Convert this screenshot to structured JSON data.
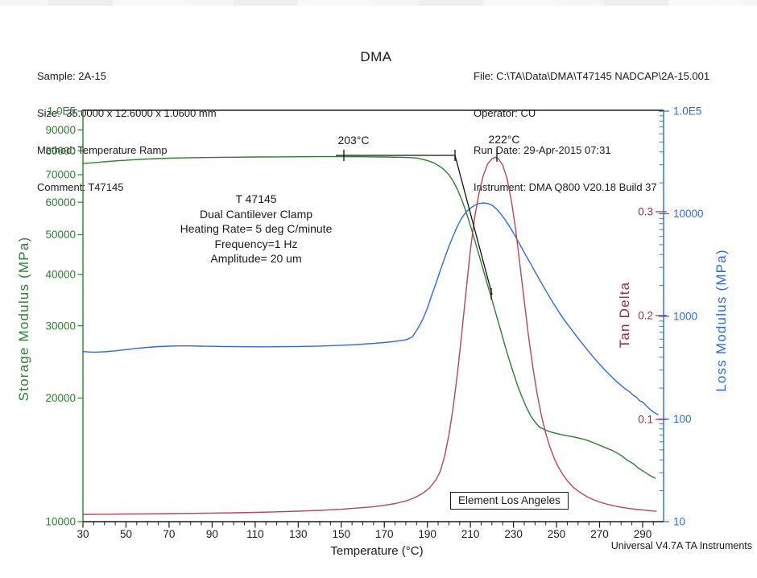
{
  "header": {
    "left": [
      "Sample: 2A-15",
      "Size:  35.0000 x 12.6000 x 1.0600 mm",
      "Method: Temperature Ramp",
      "Comment: T47145"
    ],
    "title": "DMA",
    "right": [
      "File: C:\\TA\\Data\\DMA\\T47145 NADCAP\\2A-15.001",
      "Operator: CU",
      "Run Date: 29-Apr-2015 07:31",
      "Instrument: DMA Q800 V20.18 Build 37"
    ]
  },
  "footer": {
    "credit": "Universal V4.7A TA Instruments"
  },
  "annotations": {
    "onset_label": "203°C",
    "peak_label": "222°C",
    "info_block": {
      "line1": "T 47145",
      "line2": "Dual Cantilever Clamp",
      "line3": "Heating Rate= 5 deg C/minute",
      "line4": "Frequency=1 Hz",
      "line5": "Amplitude= 20 um"
    },
    "element_label": "Element Los Angeles"
  },
  "chart_data": {
    "type": "line",
    "title": "DMA",
    "xlabel": "Temperature (°C)",
    "x_axis": {
      "min": 30,
      "max": 299.7,
      "minor_step": 5,
      "major_ticks": [
        30,
        50,
        70,
        90,
        110,
        130,
        150,
        170,
        190,
        210,
        230,
        250,
        270,
        290
      ]
    },
    "y_axes": {
      "storage": {
        "label": "Storage Modulus (MPa)",
        "side": "left",
        "scale": "log",
        "min": 10000,
        "max": 100000,
        "color": "#2e7d32",
        "ticks": [
          10000,
          20000,
          30000,
          40000,
          50000,
          60000,
          70000,
          80000,
          90000,
          100000
        ],
        "tick_labels": [
          "10000",
          "20000",
          "30000",
          "40000",
          "50000",
          "60000",
          "70000",
          "80000",
          "90000",
          "1.0E5"
        ]
      },
      "loss": {
        "label": "Loss Modulus (MPa)",
        "side": "right",
        "scale": "log",
        "min": 10,
        "max": 100000,
        "color": "#2f6ad9",
        "ticks": [
          10,
          100,
          1000,
          10000,
          100000
        ],
        "tick_labels": [
          "10",
          "100",
          "1000",
          "10000",
          "1.0E5"
        ]
      },
      "tan_delta": {
        "label": "Tan Delta",
        "side": "right",
        "scale": "linear",
        "color": "#9a2c3e",
        "ticks": [
          0.1,
          0.2,
          0.3
        ],
        "tick_labels": [
          "0.1",
          "0.2",
          "0.3"
        ]
      }
    },
    "annotations": {
      "onset": {
        "label": "203°C",
        "temperature_c": 203
      },
      "peak": {
        "label": "222°C",
        "temperature_c": 222
      }
    },
    "series": [
      {
        "name": "storage_modulus",
        "axis": "storage",
        "color": "#2e7d32",
        "units": "MPa",
        "points": [
          [
            30,
            74500
          ],
          [
            34,
            74800
          ],
          [
            38,
            75100
          ],
          [
            42,
            75400
          ],
          [
            46,
            75700
          ],
          [
            50,
            75900
          ],
          [
            55,
            76200
          ],
          [
            60,
            76400
          ],
          [
            65,
            76600
          ],
          [
            70,
            76800
          ],
          [
            75,
            76900
          ],
          [
            80,
            77000
          ],
          [
            90,
            77100
          ],
          [
            100,
            77200
          ],
          [
            110,
            77300
          ],
          [
            120,
            77350
          ],
          [
            130,
            77400
          ],
          [
            140,
            77450
          ],
          [
            150,
            77450
          ],
          [
            160,
            77400
          ],
          [
            170,
            77300
          ],
          [
            180,
            77100
          ],
          [
            185,
            76900
          ],
          [
            190,
            75800
          ],
          [
            193,
            74800
          ],
          [
            196,
            73200
          ],
          [
            198,
            71800
          ],
          [
            200,
            70000
          ],
          [
            202,
            67500
          ],
          [
            204,
            64400
          ],
          [
            206,
            60800
          ],
          [
            208,
            56800
          ],
          [
            210,
            52600
          ],
          [
            212,
            48500
          ],
          [
            214,
            44600
          ],
          [
            216,
            41000
          ],
          [
            218,
            37700
          ],
          [
            220,
            34700
          ],
          [
            222,
            31900
          ],
          [
            224,
            29300
          ],
          [
            226,
            26900
          ],
          [
            228,
            24800
          ],
          [
            230,
            23000
          ],
          [
            232,
            21400
          ],
          [
            234,
            20100
          ],
          [
            236,
            19000
          ],
          [
            238,
            18100
          ],
          [
            240,
            17500
          ],
          [
            242,
            17000
          ],
          [
            245,
            16700
          ],
          [
            248,
            16500
          ],
          [
            252,
            16300
          ],
          [
            256,
            16150
          ],
          [
            260,
            16000
          ],
          [
            264,
            15800
          ],
          [
            268,
            15500
          ],
          [
            272,
            15200
          ],
          [
            276,
            14900
          ],
          [
            280,
            14500
          ],
          [
            283,
            14100
          ],
          [
            286,
            13800
          ],
          [
            288,
            13500
          ],
          [
            290,
            13300
          ],
          [
            292,
            13100
          ],
          [
            294,
            12900
          ],
          [
            296,
            12750
          ]
        ]
      },
      {
        "name": "loss_modulus",
        "axis": "loss",
        "color": "#2f6ad9",
        "units": "MPa",
        "points": [
          [
            30,
            455
          ],
          [
            33,
            449
          ],
          [
            36,
            448
          ],
          [
            40,
            452
          ],
          [
            45,
            462
          ],
          [
            50,
            474
          ],
          [
            55,
            488
          ],
          [
            60,
            499
          ],
          [
            65,
            508
          ],
          [
            70,
            513
          ],
          [
            75,
            515
          ],
          [
            80,
            515
          ],
          [
            85,
            513
          ],
          [
            90,
            511
          ],
          [
            95,
            509
          ],
          [
            100,
            507
          ],
          [
            105,
            506
          ],
          [
            110,
            505
          ],
          [
            115,
            505
          ],
          [
            120,
            506
          ],
          [
            125,
            507
          ],
          [
            130,
            509
          ],
          [
            135,
            511
          ],
          [
            140,
            514
          ],
          [
            145,
            518
          ],
          [
            150,
            523
          ],
          [
            155,
            529
          ],
          [
            160,
            536
          ],
          [
            165,
            545
          ],
          [
            170,
            556
          ],
          [
            175,
            570
          ],
          [
            180,
            590
          ],
          [
            183,
            630
          ],
          [
            186,
            790
          ],
          [
            188,
            950
          ],
          [
            190,
            1200
          ],
          [
            192,
            1600
          ],
          [
            194,
            2100
          ],
          [
            196,
            2800
          ],
          [
            198,
            3700
          ],
          [
            200,
            4800
          ],
          [
            202,
            6100
          ],
          [
            204,
            7600
          ],
          [
            206,
            9100
          ],
          [
            208,
            10400
          ],
          [
            210,
            11300
          ],
          [
            212,
            12100
          ],
          [
            214,
            12550
          ],
          [
            216,
            12750
          ],
          [
            218,
            12600
          ],
          [
            220,
            12100
          ],
          [
            222,
            11200
          ],
          [
            224,
            10000
          ],
          [
            226,
            8800
          ],
          [
            228,
            7600
          ],
          [
            230,
            6500
          ],
          [
            232,
            5450
          ],
          [
            234,
            4600
          ],
          [
            236,
            3850
          ],
          [
            238,
            3250
          ],
          [
            240,
            2730
          ],
          [
            242,
            2300
          ],
          [
            244,
            1940
          ],
          [
            246,
            1650
          ],
          [
            248,
            1400
          ],
          [
            250,
            1200
          ],
          [
            252,
            1030
          ],
          [
            255,
            845
          ],
          [
            258,
            695
          ],
          [
            261,
            575
          ],
          [
            264,
            480
          ],
          [
            267,
            403
          ],
          [
            270,
            342
          ],
          [
            273,
            293
          ],
          [
            276,
            253
          ],
          [
            279,
            221
          ],
          [
            282,
            196
          ],
          [
            284,
            184
          ],
          [
            285.5,
            171
          ],
          [
            287,
            164
          ],
          [
            288.5,
            151
          ],
          [
            290,
            146
          ],
          [
            292,
            133
          ],
          [
            293.5,
            124
          ],
          [
            295,
            117
          ],
          [
            296.2,
            113
          ],
          [
            297.3,
            110
          ]
        ]
      },
      {
        "name": "tan_delta",
        "axis": "tan_delta",
        "color": "#b04a58",
        "units": "",
        "points": [
          [
            30,
            0.0085
          ],
          [
            40,
            0.0087
          ],
          [
            50,
            0.0089
          ],
          [
            60,
            0.0091
          ],
          [
            70,
            0.0093
          ],
          [
            80,
            0.0095
          ],
          [
            90,
            0.0098
          ],
          [
            100,
            0.0101
          ],
          [
            110,
            0.0105
          ],
          [
            120,
            0.011
          ],
          [
            130,
            0.0116
          ],
          [
            140,
            0.0124
          ],
          [
            150,
            0.0135
          ],
          [
            160,
            0.015
          ],
          [
            165,
            0.016
          ],
          [
            170,
            0.0173
          ],
          [
            175,
            0.019
          ],
          [
            180,
            0.0215
          ],
          [
            184,
            0.0245
          ],
          [
            188,
            0.029
          ],
          [
            191,
            0.034
          ],
          [
            194,
            0.042
          ],
          [
            196,
            0.05
          ],
          [
            198,
            0.0645
          ],
          [
            200,
            0.085
          ],
          [
            202,
            0.112
          ],
          [
            204,
            0.145
          ],
          [
            206,
            0.183
          ],
          [
            208,
            0.224
          ],
          [
            210,
            0.263
          ],
          [
            212,
            0.295
          ],
          [
            214,
            0.318
          ],
          [
            216,
            0.335
          ],
          [
            218,
            0.346
          ],
          [
            220,
            0.351
          ],
          [
            221.5,
            0.3525
          ],
          [
            223,
            0.351
          ],
          [
            225,
            0.345
          ],
          [
            227,
            0.332
          ],
          [
            229,
            0.311
          ],
          [
            231,
            0.283
          ],
          [
            233,
            0.249
          ],
          [
            235,
            0.214
          ],
          [
            237,
            0.18
          ],
          [
            239,
            0.15
          ],
          [
            241,
            0.1245
          ],
          [
            243,
            0.1035
          ],
          [
            245,
            0.0865
          ],
          [
            247,
            0.073
          ],
          [
            249,
            0.0622
          ],
          [
            251,
            0.0536
          ],
          [
            253,
            0.0467
          ],
          [
            255,
            0.041
          ],
          [
            258,
            0.0343
          ],
          [
            261,
            0.0295
          ],
          [
            264,
            0.0258
          ],
          [
            267,
            0.0228
          ],
          [
            270,
            0.0205
          ],
          [
            273,
            0.0186
          ],
          [
            276,
            0.0171
          ],
          [
            279,
            0.0158
          ],
          [
            282,
            0.0148
          ],
          [
            285,
            0.0139
          ],
          [
            288,
            0.0132
          ],
          [
            291,
            0.0126
          ],
          [
            293,
            0.0122
          ],
          [
            295,
            0.0118
          ],
          [
            296.5,
            0.0115
          ]
        ]
      }
    ]
  }
}
